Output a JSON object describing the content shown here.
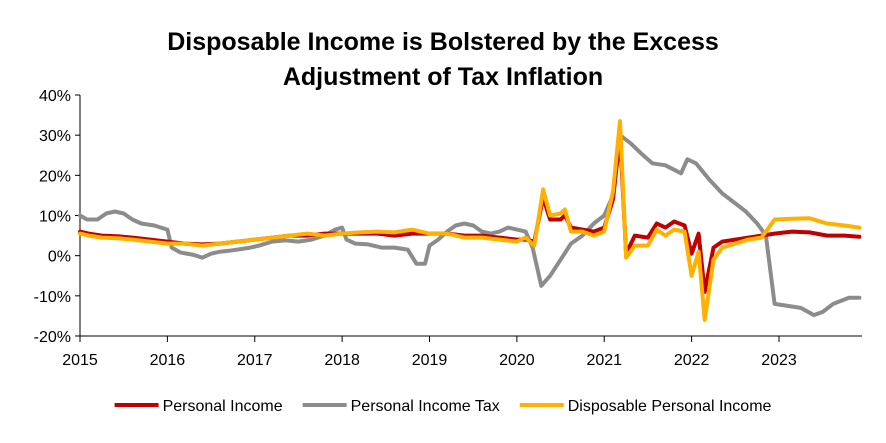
{
  "chart_data": {
    "type": "line",
    "title_line1": "Disposable Income is Bolstered by the Excess",
    "title_line2": "Adjustment of Tax Inflation",
    "xlabel": "",
    "ylabel": "",
    "xlim": [
      2015.0,
      2023.95
    ],
    "ylim": [
      -20,
      40
    ],
    "y_ticks": [
      {
        "value": -20,
        "label": "-20%"
      },
      {
        "value": -10,
        "label": "-10%"
      },
      {
        "value": 0,
        "label": "0%"
      },
      {
        "value": 10,
        "label": "10%"
      },
      {
        "value": 20,
        "label": "20%"
      },
      {
        "value": 30,
        "label": "30%"
      },
      {
        "value": 40,
        "label": "40%"
      }
    ],
    "x_ticks": [
      {
        "value": 2015,
        "label": "2015"
      },
      {
        "value": 2016,
        "label": "2016"
      },
      {
        "value": 2017,
        "label": "2017"
      },
      {
        "value": 2018,
        "label": "2018"
      },
      {
        "value": 2019,
        "label": "2019"
      },
      {
        "value": 2020,
        "label": "2020"
      },
      {
        "value": 2021,
        "label": "2021"
      },
      {
        "value": 2022,
        "label": "2022"
      },
      {
        "value": 2023,
        "label": "2023"
      }
    ],
    "legend_position": "bottom",
    "series": [
      {
        "name": "Personal Income Tax",
        "color": "#8c8c8c",
        "points": [
          [
            2015.0,
            10.0
          ],
          [
            2015.08,
            9.0
          ],
          [
            2015.2,
            9.0
          ],
          [
            2015.3,
            10.5
          ],
          [
            2015.4,
            11.0
          ],
          [
            2015.5,
            10.5
          ],
          [
            2015.6,
            9.0
          ],
          [
            2015.7,
            8.0
          ],
          [
            2015.85,
            7.5
          ],
          [
            2016.0,
            6.5
          ],
          [
            2016.05,
            2.0
          ],
          [
            2016.15,
            0.8
          ],
          [
            2016.3,
            0.2
          ],
          [
            2016.4,
            -0.5
          ],
          [
            2016.5,
            0.5
          ],
          [
            2016.6,
            1.0
          ],
          [
            2016.7,
            1.2
          ],
          [
            2016.8,
            1.5
          ],
          [
            2016.95,
            2.0
          ],
          [
            2017.05,
            2.5
          ],
          [
            2017.2,
            3.5
          ],
          [
            2017.35,
            3.8
          ],
          [
            2017.5,
            3.5
          ],
          [
            2017.65,
            4.0
          ],
          [
            2017.8,
            5.0
          ],
          [
            2017.92,
            6.5
          ],
          [
            2018.0,
            7.0
          ],
          [
            2018.05,
            4.0
          ],
          [
            2018.15,
            3.0
          ],
          [
            2018.3,
            2.8
          ],
          [
            2018.45,
            2.0
          ],
          [
            2018.6,
            2.0
          ],
          [
            2018.75,
            1.5
          ],
          [
            2018.85,
            -2.0
          ],
          [
            2018.95,
            -2.0
          ],
          [
            2019.0,
            2.5
          ],
          [
            2019.1,
            4.0
          ],
          [
            2019.2,
            6.0
          ],
          [
            2019.3,
            7.5
          ],
          [
            2019.4,
            8.0
          ],
          [
            2019.5,
            7.5
          ],
          [
            2019.6,
            6.0
          ],
          [
            2019.7,
            5.5
          ],
          [
            2019.8,
            6.0
          ],
          [
            2019.9,
            7.0
          ],
          [
            2020.0,
            6.5
          ],
          [
            2020.1,
            6.0
          ],
          [
            2020.18,
            2.0
          ],
          [
            2020.28,
            -7.5
          ],
          [
            2020.38,
            -5.0
          ],
          [
            2020.5,
            -1.0
          ],
          [
            2020.62,
            3.0
          ],
          [
            2020.75,
            5.0
          ],
          [
            2020.88,
            8.0
          ],
          [
            2021.0,
            10.0
          ],
          [
            2021.1,
            15.0
          ],
          [
            2021.18,
            30.0
          ],
          [
            2021.3,
            28.0
          ],
          [
            2021.42,
            25.5
          ],
          [
            2021.55,
            23.0
          ],
          [
            2021.7,
            22.5
          ],
          [
            2021.88,
            20.5
          ],
          [
            2021.95,
            24.0
          ],
          [
            2022.05,
            23.0
          ],
          [
            2022.2,
            19.0
          ],
          [
            2022.35,
            15.5
          ],
          [
            2022.5,
            13.0
          ],
          [
            2022.62,
            11.0
          ],
          [
            2022.75,
            8.0
          ],
          [
            2022.85,
            5.0
          ],
          [
            2022.95,
            -12.0
          ],
          [
            2023.1,
            -12.5
          ],
          [
            2023.25,
            -13.0
          ],
          [
            2023.4,
            -14.8
          ],
          [
            2023.5,
            -14.0
          ],
          [
            2023.62,
            -12.0
          ],
          [
            2023.8,
            -10.5
          ],
          [
            2023.92,
            -10.5
          ]
        ]
      },
      {
        "name": "Personal Income",
        "color": "#c00000",
        "points": [
          [
            2015.0,
            6.0
          ],
          [
            2015.1,
            5.5
          ],
          [
            2015.25,
            5.0
          ],
          [
            2015.45,
            4.8
          ],
          [
            2015.6,
            4.5
          ],
          [
            2015.8,
            4.0
          ],
          [
            2016.0,
            3.5
          ],
          [
            2016.2,
            3.0
          ],
          [
            2016.4,
            2.8
          ],
          [
            2016.6,
            3.0
          ],
          [
            2016.8,
            3.5
          ],
          [
            2017.0,
            4.0
          ],
          [
            2017.2,
            4.5
          ],
          [
            2017.4,
            5.0
          ],
          [
            2017.6,
            5.0
          ],
          [
            2017.8,
            5.5
          ],
          [
            2018.0,
            5.5
          ],
          [
            2018.2,
            5.5
          ],
          [
            2018.4,
            5.5
          ],
          [
            2018.6,
            5.0
          ],
          [
            2018.8,
            5.5
          ],
          [
            2019.0,
            5.5
          ],
          [
            2019.2,
            5.5
          ],
          [
            2019.4,
            5.0
          ],
          [
            2019.6,
            5.0
          ],
          [
            2019.8,
            4.5
          ],
          [
            2020.0,
            4.0
          ],
          [
            2020.1,
            4.0
          ],
          [
            2020.2,
            3.5
          ],
          [
            2020.3,
            14.5
          ],
          [
            2020.38,
            9.0
          ],
          [
            2020.5,
            9.0
          ],
          [
            2020.55,
            10.0
          ],
          [
            2020.62,
            7.0
          ],
          [
            2020.75,
            6.5
          ],
          [
            2020.88,
            6.0
          ],
          [
            2021.0,
            7.0
          ],
          [
            2021.1,
            14.0
          ],
          [
            2021.18,
            30.0
          ],
          [
            2021.25,
            0.5
          ],
          [
            2021.35,
            5.0
          ],
          [
            2021.5,
            4.5
          ],
          [
            2021.6,
            8.0
          ],
          [
            2021.7,
            7.0
          ],
          [
            2021.8,
            8.5
          ],
          [
            2021.92,
            7.5
          ],
          [
            2022.0,
            0.5
          ],
          [
            2022.08,
            5.5
          ],
          [
            2022.15,
            -9.0
          ],
          [
            2022.25,
            2.0
          ],
          [
            2022.35,
            3.5
          ],
          [
            2022.5,
            4.0
          ],
          [
            2022.65,
            4.5
          ],
          [
            2022.8,
            5.0
          ],
          [
            2022.95,
            5.5
          ],
          [
            2023.15,
            6.0
          ],
          [
            2023.35,
            5.8
          ],
          [
            2023.55,
            5.0
          ],
          [
            2023.75,
            5.0
          ],
          [
            2023.92,
            4.7
          ]
        ]
      },
      {
        "name": "Disposable Personal Income",
        "color": "#ffb000",
        "points": [
          [
            2015.0,
            5.5
          ],
          [
            2015.1,
            5.0
          ],
          [
            2015.25,
            4.5
          ],
          [
            2015.45,
            4.3
          ],
          [
            2015.6,
            4.0
          ],
          [
            2015.8,
            3.5
          ],
          [
            2016.0,
            3.0
          ],
          [
            2016.2,
            3.0
          ],
          [
            2016.4,
            2.5
          ],
          [
            2016.6,
            3.0
          ],
          [
            2016.8,
            3.5
          ],
          [
            2017.0,
            4.0
          ],
          [
            2017.2,
            4.5
          ],
          [
            2017.4,
            5.0
          ],
          [
            2017.6,
            5.5
          ],
          [
            2017.8,
            5.0
          ],
          [
            2018.0,
            5.5
          ],
          [
            2018.2,
            5.8
          ],
          [
            2018.4,
            6.0
          ],
          [
            2018.6,
            5.8
          ],
          [
            2018.8,
            6.5
          ],
          [
            2019.0,
            5.5
          ],
          [
            2019.2,
            5.5
          ],
          [
            2019.4,
            4.5
          ],
          [
            2019.6,
            4.5
          ],
          [
            2019.8,
            4.0
          ],
          [
            2020.0,
            3.5
          ],
          [
            2020.1,
            4.5
          ],
          [
            2020.2,
            2.5
          ],
          [
            2020.3,
            16.5
          ],
          [
            2020.38,
            10.0
          ],
          [
            2020.5,
            10.5
          ],
          [
            2020.55,
            11.5
          ],
          [
            2020.62,
            6.0
          ],
          [
            2020.75,
            6.0
          ],
          [
            2020.88,
            5.0
          ],
          [
            2021.0,
            6.0
          ],
          [
            2021.1,
            16.0
          ],
          [
            2021.18,
            33.5
          ],
          [
            2021.25,
            -0.5
          ],
          [
            2021.35,
            2.5
          ],
          [
            2021.5,
            2.5
          ],
          [
            2021.6,
            6.5
          ],
          [
            2021.7,
            5.0
          ],
          [
            2021.8,
            6.5
          ],
          [
            2021.92,
            6.0
          ],
          [
            2022.0,
            -5.0
          ],
          [
            2022.08,
            1.0
          ],
          [
            2022.15,
            -16.0
          ],
          [
            2022.25,
            -1.0
          ],
          [
            2022.35,
            2.0
          ],
          [
            2022.5,
            3.0
          ],
          [
            2022.65,
            4.0
          ],
          [
            2022.8,
            4.5
          ],
          [
            2022.95,
            9.0
          ],
          [
            2023.15,
            9.2
          ],
          [
            2023.35,
            9.3
          ],
          [
            2023.55,
            8.0
          ],
          [
            2023.75,
            7.5
          ],
          [
            2023.92,
            7.0
          ]
        ]
      }
    ],
    "legend": [
      {
        "name": "Personal Income",
        "color": "#c00000"
      },
      {
        "name": "Personal Income Tax",
        "color": "#8c8c8c"
      },
      {
        "name": "Disposable Personal Income",
        "color": "#ffb000"
      }
    ]
  }
}
